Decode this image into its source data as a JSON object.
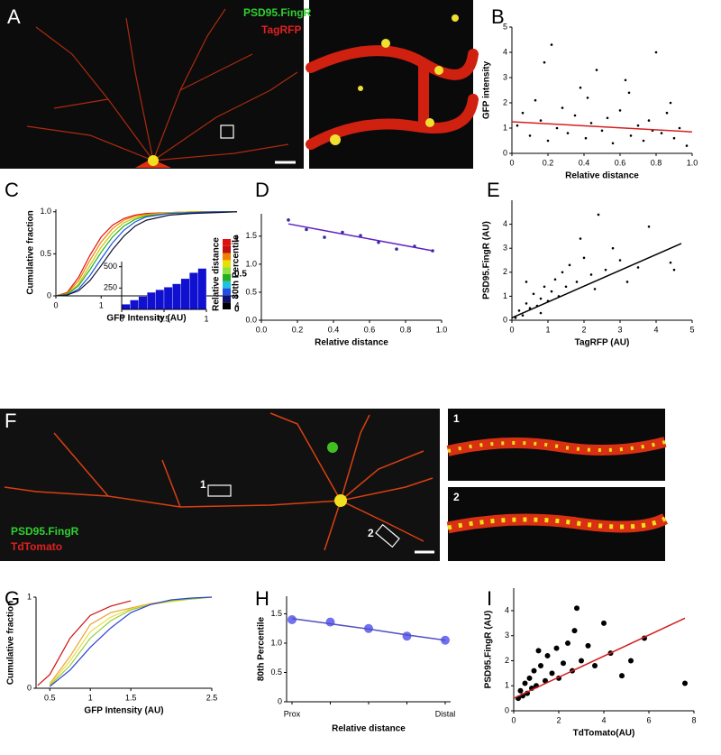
{
  "panel_labels": [
    "A",
    "B",
    "C",
    "D",
    "E",
    "F",
    "G",
    "H",
    "I"
  ],
  "image_text": {
    "a_green": "PSD95.FingR",
    "a_red": "TagRFP",
    "f_green": "PSD95.FingR",
    "f_red": "TdTomato",
    "f_box1": "1",
    "f_box2": "2",
    "zoom1": "1",
    "zoom2": "2"
  },
  "chart_data": [
    {
      "type": "scatter",
      "xlabel": "Relative distance",
      "ylabel": "GFP intensity",
      "xlim": [
        0,
        1
      ],
      "ylim": [
        0,
        5
      ],
      "xticks": [
        0,
        0.2,
        0.4,
        0.6,
        0.8,
        {
          "value": 1,
          "label": "1.0"
        }
      ],
      "yticks": [
        0,
        1,
        2,
        3,
        4,
        5
      ],
      "color": "#000000",
      "x": [
        0.03,
        0.06,
        0.1,
        0.13,
        0.16,
        0.2,
        0.22,
        0.25,
        0.28,
        0.31,
        0.35,
        0.38,
        0.41,
        0.44,
        0.47,
        0.5,
        0.53,
        0.56,
        0.6,
        0.63,
        0.66,
        0.7,
        0.73,
        0.76,
        0.8,
        0.83,
        0.86,
        0.9,
        0.93,
        0.97,
        0.18,
        0.42,
        0.65,
        0.78,
        0.88
      ],
      "values": [
        1.1,
        1.6,
        0.7,
        2.1,
        1.3,
        0.5,
        4.3,
        1.0,
        1.8,
        0.8,
        1.5,
        2.6,
        0.6,
        1.2,
        3.3,
        0.9,
        1.4,
        0.4,
        1.7,
        2.9,
        0.7,
        1.1,
        0.5,
        1.3,
        4.0,
        0.8,
        1.6,
        0.6,
        1.0,
        0.3,
        3.6,
        2.2,
        2.4,
        0.9,
        2.0
      ],
      "fit": {
        "x": [
          0,
          1
        ],
        "values": [
          1.25,
          0.85
        ],
        "color": "#d42020"
      }
    },
    {
      "type": "line",
      "xlabel": "GFP Intensity (AU)",
      "ylabel": "Cumulative fraction",
      "xlim": [
        0,
        4
      ],
      "ylim": [
        0,
        1.03
      ],
      "xticks": [
        0,
        1,
        2,
        3,
        4
      ],
      "yticks": [
        0,
        0.5,
        {
          "value": 1,
          "label": "1.0"
        }
      ],
      "x": [
        0,
        0.25,
        0.5,
        0.75,
        1,
        1.25,
        1.5,
        1.75,
        2,
        2.5,
        3,
        3.5,
        4
      ],
      "series": [
        {
          "color": "#e01010",
          "values": [
            0,
            0.04,
            0.22,
            0.48,
            0.7,
            0.84,
            0.92,
            0.96,
            0.98,
            0.99,
            1,
            1,
            1
          ]
        },
        {
          "color": "#f08000",
          "values": [
            0,
            0.03,
            0.18,
            0.42,
            0.64,
            0.8,
            0.9,
            0.95,
            0.97,
            0.99,
            1,
            1,
            1
          ]
        },
        {
          "color": "#c8c800",
          "values": [
            0,
            0.02,
            0.14,
            0.36,
            0.58,
            0.75,
            0.87,
            0.93,
            0.96,
            0.99,
            1,
            1,
            1
          ]
        },
        {
          "color": "#20b020",
          "values": [
            0,
            0.02,
            0.12,
            0.31,
            0.52,
            0.7,
            0.83,
            0.91,
            0.95,
            0.98,
            0.99,
            1,
            1
          ]
        },
        {
          "color": "#2050e0",
          "values": [
            0,
            0.01,
            0.08,
            0.24,
            0.44,
            0.63,
            0.78,
            0.88,
            0.94,
            0.98,
            0.99,
            1,
            1
          ]
        },
        {
          "color": "#101030",
          "values": [
            0,
            0.01,
            0.06,
            0.18,
            0.36,
            0.55,
            0.71,
            0.83,
            0.9,
            0.96,
            0.98,
            0.99,
            1
          ]
        }
      ],
      "inset": {
        "type": "histogram",
        "bins": [
          0,
          0.1,
          0.2,
          0.3,
          0.4,
          0.5,
          0.6,
          0.7,
          0.8,
          0.9,
          1
        ],
        "values": [
          60,
          110,
          150,
          200,
          230,
          260,
          300,
          360,
          430,
          480
        ],
        "xlim": [
          0,
          1
        ],
        "ylim": [
          0,
          560
        ],
        "xticks": [
          0,
          0.5,
          1
        ],
        "yticks": [
          250,
          500
        ],
        "color": "#1010d0"
      },
      "colorbar": {
        "label": "Relative distance",
        "ticks": [
          0,
          0.5,
          1
        ],
        "colors": [
          "#000000",
          "#101070",
          "#2050e0",
          "#20c0e0",
          "#20b020",
          "#90e040",
          "#e8e000",
          "#f08000",
          "#c01010",
          "#e01010"
        ]
      }
    },
    {
      "type": "scatter",
      "xlabel": "Relative distance",
      "ylabel": "80th Percentile",
      "xlim": [
        0,
        1
      ],
      "ylim": [
        0,
        1.9
      ],
      "xticks": [
        {
          "value": 0,
          "label": "0.0"
        },
        0.2,
        0.4,
        0.6,
        0.8,
        {
          "value": 1,
          "label": "1.0"
        }
      ],
      "yticks": [
        {
          "value": 0,
          "label": "0.0"
        },
        0.5,
        {
          "value": 1,
          "label": "1.0"
        },
        1.5
      ],
      "color": "#3030a0",
      "x": [
        0.15,
        0.25,
        0.35,
        0.45,
        0.55,
        0.65,
        0.75,
        0.85,
        0.95
      ],
      "values": [
        1.79,
        1.62,
        1.48,
        1.57,
        1.51,
        1.39,
        1.27,
        1.32,
        1.24
      ],
      "fit": {
        "x": [
          0.15,
          0.95
        ],
        "values": [
          1.72,
          1.24
        ],
        "color": "#6020c0"
      }
    },
    {
      "type": "scatter",
      "xlabel": "TagRFP (AU)",
      "ylabel": "PSD95.FingR (AU)",
      "xlim": [
        0,
        5
      ],
      "ylim": [
        0,
        5
      ],
      "xticks": [
        0,
        1,
        2,
        3,
        4,
        5
      ],
      "yticks": [
        0,
        1,
        2,
        3,
        4
      ],
      "color": "#000000",
      "x": [
        0.1,
        0.2,
        0.3,
        0.4,
        0.5,
        0.6,
        0.7,
        0.8,
        0.9,
        1.0,
        1.1,
        1.2,
        1.3,
        1.4,
        1.5,
        1.6,
        1.8,
        2.0,
        2.2,
        2.4,
        2.6,
        2.8,
        3.0,
        3.2,
        3.5,
        3.8,
        4.4,
        4.5,
        1.9,
        2.3,
        0.4,
        0.8
      ],
      "values": [
        0.1,
        0.4,
        0.2,
        0.7,
        0.5,
        1.1,
        0.6,
        0.9,
        1.4,
        0.8,
        1.2,
        1.7,
        1.0,
        2.0,
        1.4,
        2.3,
        1.6,
        2.6,
        1.9,
        4.4,
        2.1,
        3.0,
        2.5,
        1.6,
        2.2,
        3.9,
        2.4,
        2.1,
        3.4,
        1.3,
        1.6,
        0.3
      ],
      "fit": {
        "x": [
          0,
          4.7
        ],
        "values": [
          0.1,
          3.2
        ],
        "color": "#000000"
      }
    },
    {
      "type": "line",
      "xlabel": "GFP Intensity (AU)",
      "ylabel": "Cumulative fraction",
      "xlim": [
        0.33,
        2.5
      ],
      "ylim": [
        0,
        1
      ],
      "xticks": [
        0.5,
        1,
        1.5,
        2.5
      ],
      "yticks": [
        0,
        1
      ],
      "x": [
        0.35,
        0.5,
        0.75,
        1,
        1.25,
        1.5,
        1.75,
        2,
        2.25,
        2.5
      ],
      "series": [
        {
          "color": "#d01010",
          "values": [
            0.03,
            0.15,
            0.55,
            0.8,
            0.9,
            0.96,
            null,
            null,
            null,
            null
          ]
        },
        {
          "color": "#f0a030",
          "values": [
            null,
            0.05,
            0.35,
            0.7,
            0.83,
            0.88,
            0.93,
            0.96,
            0.98,
            1
          ]
        },
        {
          "color": "#e8e040",
          "values": [
            null,
            0.04,
            0.3,
            0.62,
            0.78,
            0.87,
            0.92,
            0.95,
            0.98,
            1
          ]
        },
        {
          "color": "#90d040",
          "values": [
            null,
            0.03,
            0.25,
            0.55,
            0.74,
            0.86,
            0.92,
            0.96,
            0.98,
            1
          ]
        },
        {
          "color": "#3040d0",
          "values": [
            null,
            0.02,
            0.2,
            0.45,
            0.66,
            0.83,
            0.92,
            0.97,
            0.99,
            1
          ]
        }
      ]
    },
    {
      "type": "scatter",
      "xlabel": "Relative distance",
      "ylabel": "80th Percentile",
      "ylim": [
        0,
        1.8
      ],
      "yticks": [
        0,
        0.5,
        {
          "value": 1,
          "label": "1.0"
        },
        1.5
      ],
      "color": "#7070f0",
      "categories": [
        "Prox",
        null,
        null,
        null,
        "Distal"
      ],
      "values": [
        1.4,
        1.36,
        1.25,
        1.12,
        1.05
      ],
      "fit": {
        "values": [
          1.42,
          1.33,
          1.24,
          1.14,
          1.05
        ],
        "color": "#5050c0"
      }
    },
    {
      "type": "scatter",
      "xlabel": "TdTomato(AU)",
      "ylabel": "PSD95.FingR (AU)",
      "xlim": [
        0,
        8
      ],
      "ylim": [
        0,
        4.9
      ],
      "xticks": [
        0,
        2,
        4,
        6,
        8
      ],
      "yticks": [
        0,
        1,
        2,
        3,
        4
      ],
      "color": "#000000",
      "x": [
        0.2,
        0.3,
        0.4,
        0.5,
        0.6,
        0.7,
        0.8,
        0.9,
        1.0,
        1.2,
        1.4,
        1.5,
        1.7,
        1.9,
        2.0,
        2.2,
        2.4,
        2.6,
        2.8,
        3.0,
        3.3,
        3.6,
        4.0,
        4.3,
        4.8,
        5.2,
        5.8,
        7.6,
        2.7,
        1.1
      ],
      "values": [
        0.5,
        0.8,
        0.6,
        1.1,
        0.7,
        1.3,
        0.9,
        1.6,
        1.0,
        1.8,
        1.2,
        2.2,
        1.5,
        2.5,
        1.3,
        1.9,
        2.7,
        1.6,
        4.1,
        2.0,
        2.6,
        1.8,
        3.5,
        2.3,
        1.4,
        2.0,
        2.9,
        1.1,
        3.2,
        2.4
      ],
      "fit": {
        "x": [
          0,
          7.6
        ],
        "values": [
          0.5,
          3.7
        ],
        "color": "#d02020"
      }
    }
  ]
}
